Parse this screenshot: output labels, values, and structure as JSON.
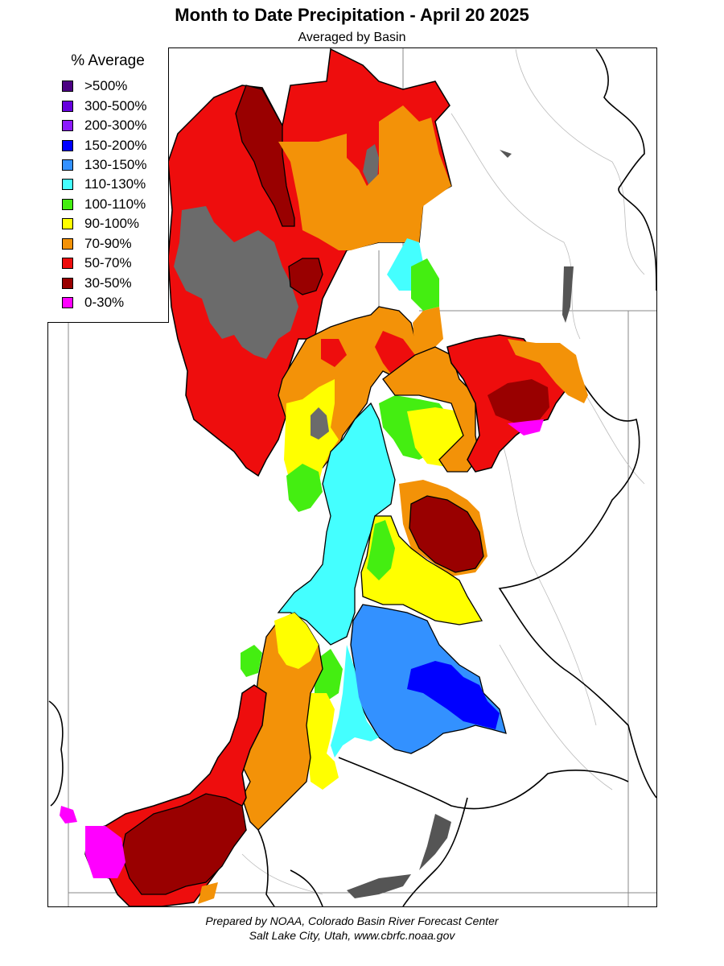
{
  "header": {
    "title": "Month to Date Precipitation - April 20 2025",
    "subtitle": "Averaged by Basin"
  },
  "legend": {
    "title": "% Average",
    "items": [
      {
        "label": ">500%",
        "color": "#4b0082"
      },
      {
        "label": "300-500%",
        "color": "#6600dd"
      },
      {
        "label": "200-300%",
        "color": "#8c1aff"
      },
      {
        "label": "150-200%",
        "color": "#0000ff"
      },
      {
        "label": "130-150%",
        "color": "#3391ff"
      },
      {
        "label": "110-130%",
        "color": "#44ffff"
      },
      {
        "label": "100-110%",
        "color": "#44ee11"
      },
      {
        "label": "90-100%",
        "color": "#ffff00"
      },
      {
        "label": "70-90%",
        "color": "#f39208"
      },
      {
        "label": "50-70%",
        "color": "#ee0d0d"
      },
      {
        "label": "30-50%",
        "color": "#990000"
      },
      {
        "label": "0-30%",
        "color": "#ff00ff"
      }
    ]
  },
  "footer": {
    "line1": "Prepared by NOAA, Colorado Basin River Forecast Center",
    "line2": "Salt Lake City, Utah, www.cbrfc.noaa.gov"
  },
  "colors": {
    "no_data": "#6b6b6b"
  }
}
